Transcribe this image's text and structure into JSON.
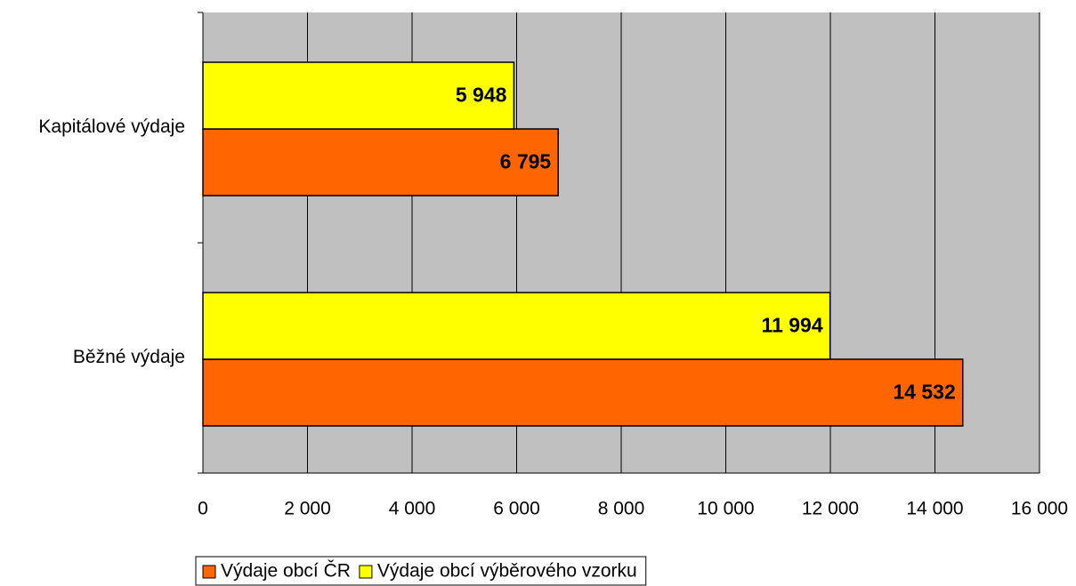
{
  "chart_data": {
    "type": "barh",
    "categories": [
      "Kapitálové výdaje",
      "Běžné výdaje"
    ],
    "series": [
      {
        "name": "Výdaje obcí ČR",
        "color": "#ff6600",
        "values": [
          6795,
          14532
        ],
        "value_labels": [
          "6 795",
          "14 532"
        ]
      },
      {
        "name": "Výdaje obcí výběrového vzorku",
        "color": "#ffff00",
        "values": [
          5948,
          11994
        ],
        "value_labels": [
          "5 948",
          "11 994"
        ]
      }
    ],
    "xlim": [
      0,
      16000
    ],
    "xticks": [
      0,
      {
        "value": 2000,
        "label": "2 000"
      },
      {
        "value": 4000,
        "label": "4 000"
      },
      {
        "value": 6000,
        "label": "6 000"
      },
      {
        "value": 8000,
        "label": "8 000"
      },
      {
        "value": 10000,
        "label": "10 000"
      },
      {
        "value": 12000,
        "label": "12 000"
      },
      {
        "value": 14000,
        "label": "14 000"
      },
      {
        "value": 16000,
        "label": "16 000"
      }
    ],
    "grid": true,
    "legend": "bottom",
    "plot_background": "#c0c0c0"
  }
}
